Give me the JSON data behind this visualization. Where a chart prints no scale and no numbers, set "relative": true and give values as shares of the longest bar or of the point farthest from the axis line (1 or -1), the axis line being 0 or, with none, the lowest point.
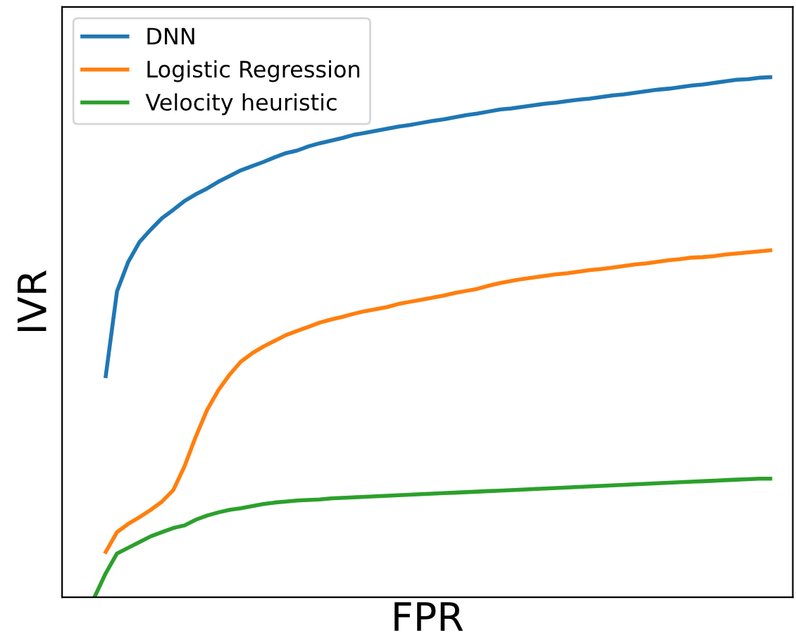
{
  "chart_data": {
    "type": "line",
    "relative": true,
    "xlabel": "FPR",
    "ylabel": "IVR",
    "legend": "top left",
    "tick_labels": false,
    "categories": [
      null,
      null,
      null,
      null,
      null,
      null,
      null,
      null,
      null,
      null,
      null,
      null,
      null,
      null,
      null,
      null,
      null,
      null,
      null,
      null,
      null,
      null,
      null,
      null,
      null,
      null,
      null,
      null,
      null,
      null,
      null,
      null,
      null,
      null,
      null,
      null,
      null,
      null,
      null,
      null,
      null,
      null,
      null,
      null,
      null,
      null,
      null,
      null,
      null,
      null,
      null,
      null,
      null,
      null,
      null,
      null,
      null,
      null,
      null,
      null,
      null
    ],
    "series": [
      {
        "name": "DNN",
        "color": "#1f77b4",
        "values": [
          null,
          0.425,
          0.588,
          0.645,
          0.683,
          0.707,
          0.729,
          0.745,
          0.762,
          0.775,
          0.786,
          0.799,
          0.81,
          0.821,
          0.829,
          0.837,
          0.846,
          0.854,
          0.859,
          0.867,
          0.873,
          0.878,
          0.883,
          0.889,
          0.893,
          0.897,
          0.901,
          0.905,
          0.908,
          0.912,
          0.916,
          0.919,
          0.923,
          0.927,
          0.93,
          0.934,
          0.938,
          0.94,
          0.943,
          0.946,
          0.949,
          0.951,
          0.954,
          0.957,
          0.959,
          0.962,
          0.965,
          0.967,
          0.97,
          0.973,
          0.976,
          0.978,
          0.981,
          0.984,
          0.986,
          0.989,
          0.992,
          0.995,
          0.996,
          0.999,
          1.0
        ]
      },
      {
        "name": "Logistic Regression",
        "color": "#ff7f0e",
        "values": [
          null,
          0.087,
          0.125,
          0.141,
          0.154,
          0.168,
          0.184,
          0.206,
          0.252,
          0.309,
          0.36,
          0.398,
          0.428,
          0.453,
          0.469,
          0.482,
          0.493,
          0.504,
          0.512,
          0.52,
          0.528,
          0.534,
          0.539,
          0.545,
          0.55,
          0.554,
          0.558,
          0.564,
          0.568,
          0.572,
          0.576,
          0.58,
          0.585,
          0.589,
          0.593,
          0.599,
          0.604,
          0.608,
          0.612,
          0.615,
          0.618,
          0.621,
          0.623,
          0.626,
          0.629,
          0.631,
          0.634,
          0.637,
          0.64,
          0.642,
          0.645,
          0.648,
          0.65,
          0.653,
          0.654,
          0.656,
          0.659,
          0.661,
          0.663,
          0.665,
          0.667
        ]
      },
      {
        "name": "Velocity heuristic",
        "color": "#2ca02c",
        "values": [
          0.0,
          0.046,
          0.084,
          0.095,
          0.106,
          0.117,
          0.125,
          0.133,
          0.138,
          0.149,
          0.157,
          0.163,
          0.168,
          0.171,
          0.175,
          0.179,
          0.182,
          0.184,
          0.186,
          0.187,
          0.188,
          0.19,
          0.191,
          0.192,
          0.193,
          0.194,
          0.195,
          0.196,
          0.197,
          0.198,
          0.199,
          0.2,
          0.201,
          0.202,
          0.203,
          0.204,
          0.205,
          0.206,
          0.207,
          0.208,
          0.209,
          0.21,
          0.211,
          0.212,
          0.213,
          0.214,
          0.215,
          0.216,
          0.217,
          0.218,
          0.219,
          0.22,
          0.221,
          0.222,
          0.223,
          0.224,
          0.225,
          0.226,
          0.227,
          0.228,
          0.228
        ]
      }
    ]
  }
}
